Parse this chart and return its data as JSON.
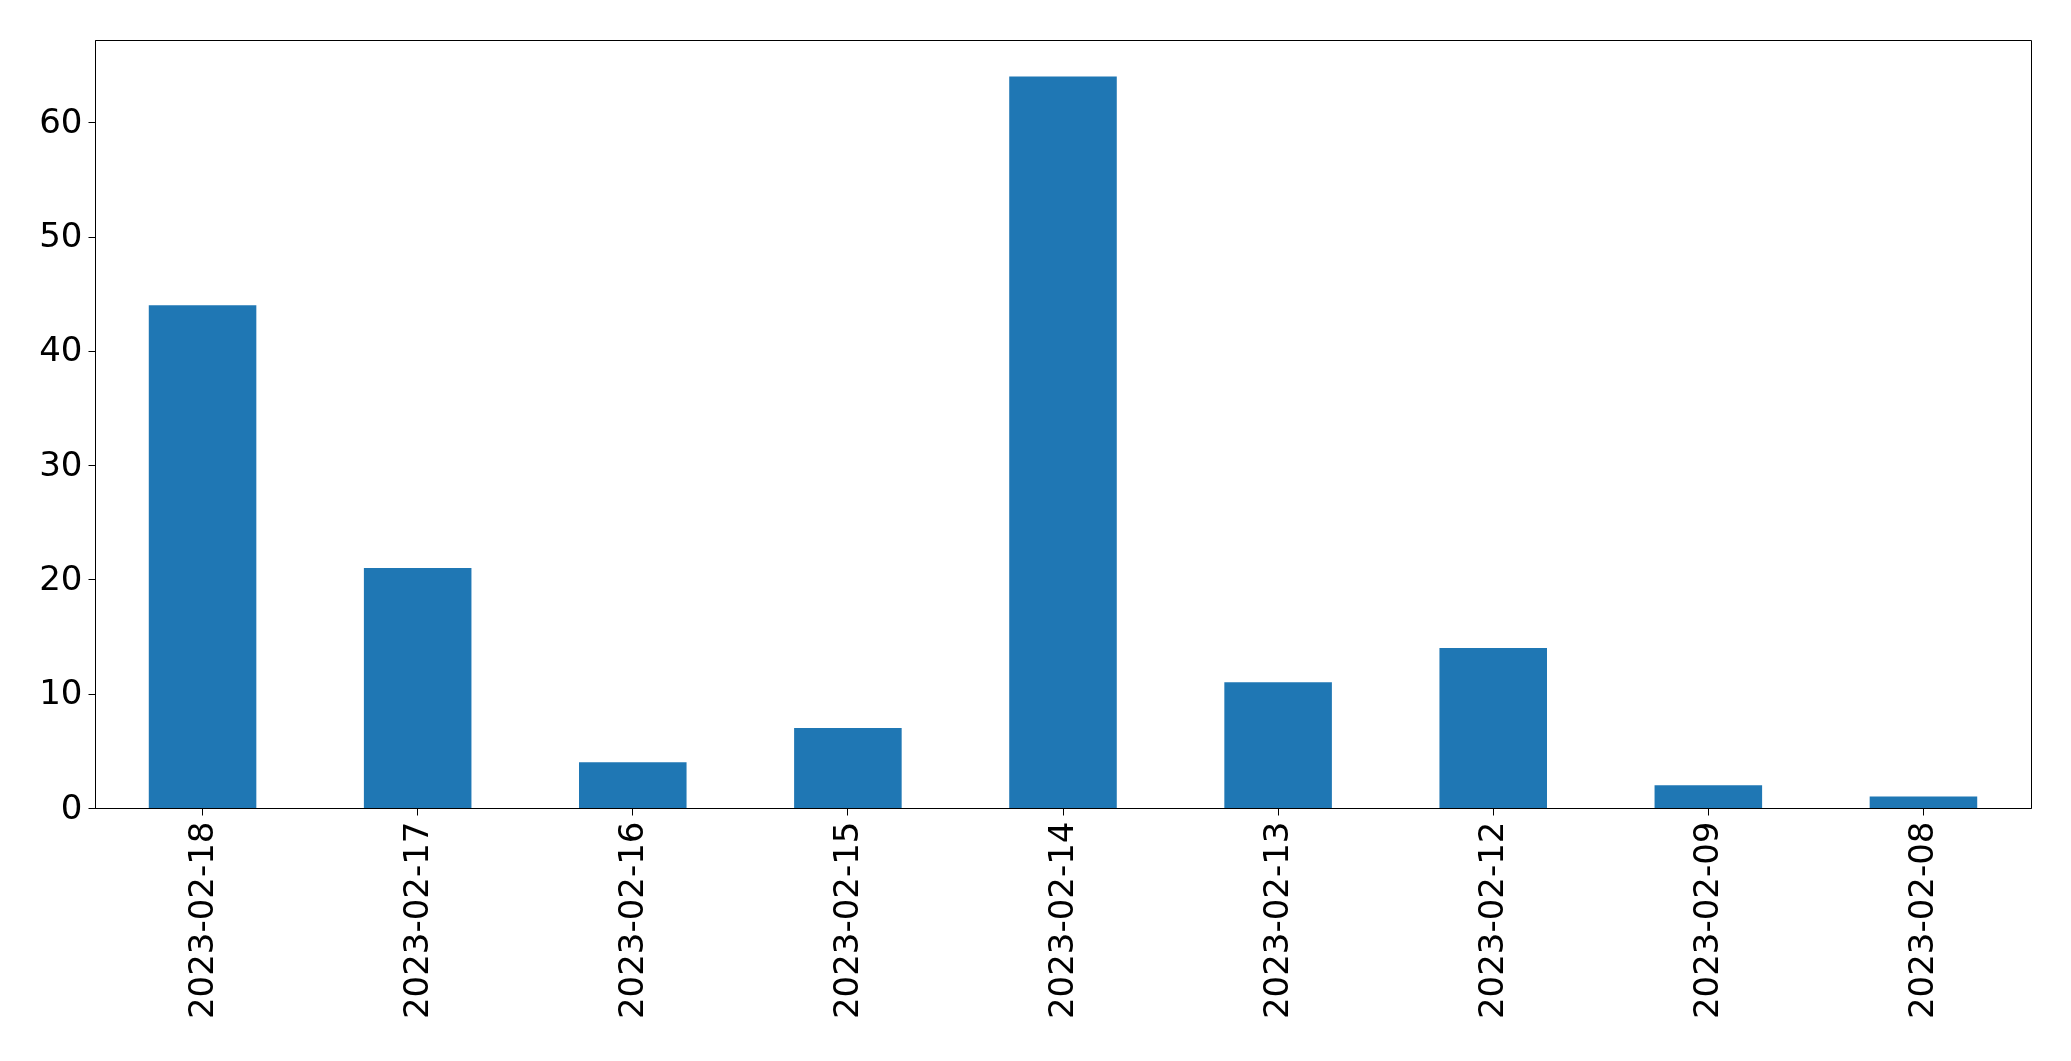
{
  "chart_data": {
    "type": "bar",
    "categories": [
      "2023-02-18",
      "2023-02-17",
      "2023-02-16",
      "2023-02-15",
      "2023-02-14",
      "2023-02-13",
      "2023-02-12",
      "2023-02-09",
      "2023-02-08"
    ],
    "values": [
      44,
      21,
      4,
      7,
      64,
      11,
      14,
      2,
      1
    ],
    "color": "#1f77b4",
    "ylim": [
      0,
      67.2
    ],
    "yticks": [
      0,
      10,
      20,
      30,
      40,
      50,
      60
    ],
    "grid": false
  }
}
